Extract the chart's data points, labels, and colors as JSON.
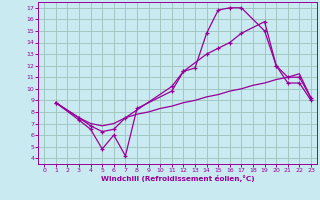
{
  "bg_color": "#c8eaf0",
  "line_color": "#990099",
  "grid_color": "#a0c8c0",
  "xlabel": "Windchill (Refroidissement éolien,°C)",
  "xlim": [
    -0.5,
    23.5
  ],
  "ylim": [
    3.5,
    17.5
  ],
  "xticks": [
    0,
    1,
    2,
    3,
    4,
    5,
    6,
    7,
    8,
    9,
    10,
    11,
    12,
    13,
    14,
    15,
    16,
    17,
    18,
    19,
    20,
    21,
    22,
    23
  ],
  "yticks": [
    4,
    5,
    6,
    7,
    8,
    9,
    10,
    11,
    12,
    13,
    14,
    15,
    16,
    17
  ],
  "line1_x": [
    1,
    3,
    4,
    5,
    6,
    7,
    8,
    11,
    12,
    13,
    14,
    15,
    16,
    17,
    19,
    20,
    21,
    22,
    23
  ],
  "line1_y": [
    8.8,
    7.3,
    6.5,
    4.8,
    6.0,
    4.2,
    8.3,
    9.8,
    11.5,
    11.8,
    14.8,
    16.8,
    17.0,
    17.0,
    15.0,
    12.0,
    10.5,
    10.5,
    9.0
  ],
  "line2_x": [
    1,
    3,
    4,
    5,
    6,
    7,
    11,
    12,
    14,
    15,
    16,
    17,
    19,
    20,
    21,
    22,
    23
  ],
  "line2_y": [
    8.8,
    7.5,
    6.8,
    6.3,
    6.5,
    7.5,
    10.2,
    11.5,
    13.0,
    13.5,
    14.0,
    14.8,
    15.8,
    12.0,
    11.0,
    11.0,
    9.2
  ],
  "line3_x": [
    1,
    3,
    4,
    5,
    6,
    7,
    8,
    9,
    10,
    11,
    12,
    13,
    14,
    15,
    16,
    17,
    18,
    19,
    20,
    21,
    22,
    23
  ],
  "line3_y": [
    8.8,
    7.5,
    7.0,
    6.8,
    7.0,
    7.5,
    7.8,
    8.0,
    8.3,
    8.5,
    8.8,
    9.0,
    9.3,
    9.5,
    9.8,
    10.0,
    10.3,
    10.5,
    10.8,
    11.0,
    11.3,
    9.2
  ]
}
